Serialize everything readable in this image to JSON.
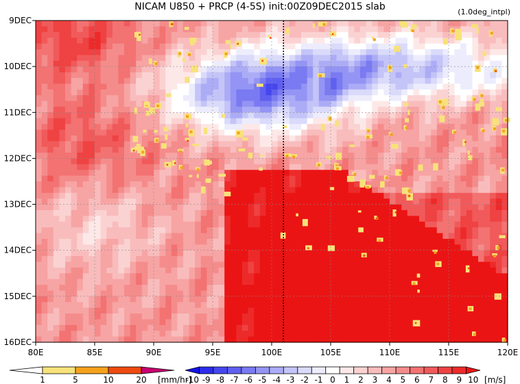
{
  "chart_data": {
    "type": "heatmap",
    "title": "NICAM   U850 + PRCP (4-5S) init:00Z09DEC2015 slab",
    "note": "(1.0deg_intpl)",
    "x_ticks": [
      "80E",
      "85E",
      "90E",
      "95E",
      "100E",
      "105E",
      "110E",
      "115E",
      "120E"
    ],
    "x_range": [
      80,
      120
    ],
    "y_ticks": [
      "9DEC",
      "10DEC",
      "11DEC",
      "12DEC",
      "13DEC",
      "14DEC",
      "15DEC",
      "16DEC"
    ],
    "y_range": [
      "9DEC",
      "16DEC"
    ],
    "vertical_line_lon": 101,
    "grid": true,
    "precip": {
      "labels": [
        "1",
        "5",
        "10",
        "20"
      ],
      "unit": "[mm/hr]",
      "colors": [
        "#ffffff",
        "#f7e27a",
        "#f5a21c",
        "#ee4a10",
        "#c8006e"
      ]
    },
    "wind": {
      "labels": [
        "-10",
        "-9",
        "-8",
        "-7",
        "-6",
        "-5",
        "-4",
        "-3",
        "-2",
        "-1",
        "0",
        "1",
        "2",
        "3",
        "4",
        "5",
        "6",
        "7",
        "8",
        "9",
        "10"
      ],
      "unit": "[m/s]",
      "colors": [
        "#1414e6",
        "#2c2cea",
        "#4646ee",
        "#6060f0",
        "#7a7af2",
        "#9494f4",
        "#acacf6",
        "#c4c4f8",
        "#dadafa",
        "#ececfc",
        "#ffffff",
        "#fde8e8",
        "#fbd2d2",
        "#f9bcbc",
        "#f7a4a4",
        "#f58c8c",
        "#f37272",
        "#f15a5a",
        "#ef4242",
        "#ed2a2a",
        "#eb1414"
      ]
    }
  }
}
